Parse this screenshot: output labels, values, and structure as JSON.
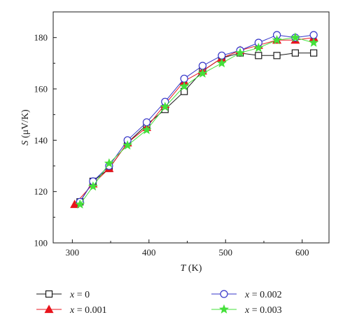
{
  "chart_data": {
    "type": "line",
    "xlabel": {
      "symbol": "T",
      "unit": " (K)"
    },
    "ylabel": {
      "symbol": "S",
      "unit": " (μV/K)"
    },
    "xlim": [
      275,
      635
    ],
    "ylim": [
      100,
      190
    ],
    "xticks": [
      300,
      400,
      500,
      600
    ],
    "yticks": [
      100,
      120,
      140,
      160,
      180
    ],
    "grid": false,
    "legend": "bottom",
    "series": [
      {
        "name": "x = 0",
        "legend_var": "x",
        "legend_rest": " = 0",
        "marker": "square",
        "color": "#1a1a1a",
        "fill": "#ffffff",
        "x": [
          310,
          327,
          348,
          372,
          397,
          421,
          446,
          470,
          495,
          519,
          543,
          567,
          591,
          615
        ],
        "y": [
          116,
          124,
          129,
          139,
          146,
          152,
          159,
          167,
          172,
          174,
          173,
          173,
          174,
          174
        ]
      },
      {
        "name": "x = 0.001",
        "legend_var": "x",
        "legend_rest": " = 0.001",
        "marker": "triangle",
        "color": "#e8141c",
        "fill": "#e8141c",
        "x": [
          303,
          327,
          348,
          372,
          397,
          421,
          446,
          470,
          495,
          519,
          543,
          567,
          591,
          615
        ],
        "y": [
          115,
          123,
          129,
          139,
          145,
          154,
          163,
          167,
          172,
          175,
          177,
          179,
          179,
          180
        ]
      },
      {
        "name": "x = 0.002",
        "legend_var": "x",
        "legend_rest": " = 0.002",
        "marker": "circle",
        "color": "#3535c8",
        "fill": "#ffffff",
        "x": [
          310,
          327,
          348,
          372,
          397,
          421,
          446,
          470,
          495,
          519,
          543,
          567,
          591,
          615
        ],
        "y": [
          116,
          124,
          130,
          140,
          147,
          155,
          164,
          169,
          173,
          175,
          178,
          181,
          180,
          181
        ]
      },
      {
        "name": "x = 0.003",
        "legend_var": "x",
        "legend_rest": " = 0.003",
        "marker": "star",
        "color": "#44e03a",
        "fill": "#44e03a",
        "x": [
          310,
          327,
          348,
          372,
          397,
          421,
          446,
          470,
          495,
          519,
          543,
          567,
          591,
          615
        ],
        "y": [
          115,
          122,
          131,
          138,
          144,
          153,
          161,
          166,
          170,
          174,
          176,
          179,
          180,
          178
        ]
      }
    ]
  }
}
